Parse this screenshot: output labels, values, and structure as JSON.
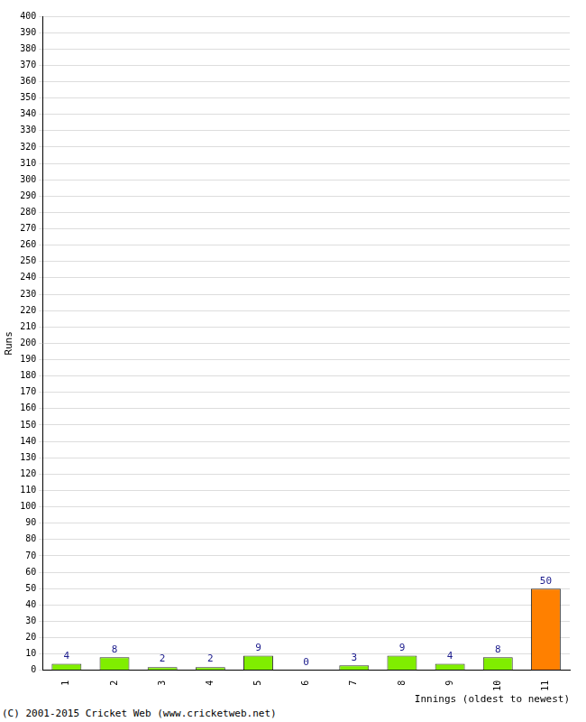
{
  "chart_data": {
    "type": "bar",
    "categories": [
      "1",
      "2",
      "3",
      "4",
      "5",
      "6",
      "7",
      "8",
      "9",
      "10",
      "11"
    ],
    "values": [
      4,
      8,
      2,
      2,
      9,
      0,
      3,
      9,
      4,
      8,
      50
    ],
    "colors": [
      "#80ee00",
      "#80ee00",
      "#80ee00",
      "#80ee00",
      "#80ee00",
      "#80ee00",
      "#80ee00",
      "#80ee00",
      "#80ee00",
      "#80ee00",
      "#ff8000"
    ],
    "x_label": "Innings (oldest to newest)",
    "y_label": "Runs",
    "ylim": [
      0,
      400
    ],
    "yticks": [
      0,
      10,
      20,
      30,
      40,
      50,
      60,
      70,
      80,
      90,
      100,
      110,
      120,
      130,
      140,
      150,
      160,
      170,
      180,
      190,
      200,
      210,
      220,
      230,
      240,
      250,
      260,
      270,
      280,
      290,
      300,
      310,
      320,
      330,
      340,
      350,
      360,
      370,
      380,
      390,
      400
    ],
    "grid": true,
    "data_labels": true,
    "annotations": [
      "(C) 2001-2015 Cricket Web (www.cricketweb.net)"
    ]
  }
}
